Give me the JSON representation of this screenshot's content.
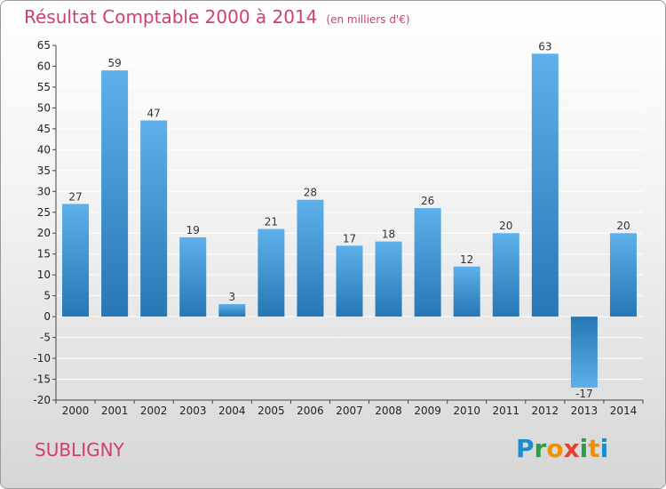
{
  "chart_data": {
    "type": "bar",
    "title": "Résultat Comptable 2000 à 2014",
    "subtitle": "(en milliers d'€)",
    "categories": [
      "2000",
      "2001",
      "2002",
      "2003",
      "2004",
      "2005",
      "2006",
      "2007",
      "2008",
      "2009",
      "2010",
      "2011",
      "2012",
      "2013",
      "2014"
    ],
    "values": [
      27,
      59,
      47,
      19,
      3,
      21,
      28,
      17,
      18,
      26,
      12,
      20,
      63,
      -17,
      20
    ],
    "ylim": [
      -20,
      65
    ],
    "yticks": [
      65,
      60,
      55,
      50,
      45,
      40,
      35,
      30,
      25,
      20,
      15,
      10,
      5,
      0,
      -5,
      -10,
      -15,
      -20
    ],
    "ytick_labels": [
      "65",
      "60",
      "55",
      "50",
      "45",
      "40",
      "35",
      "30",
      "25",
      "20",
      "15",
      "10",
      "5",
      "0",
      "-5",
      "-10",
      "-15",
      "-20"
    ],
    "data_labels": [
      "27",
      "59",
      "47",
      "19",
      "3",
      "21",
      "28",
      "17",
      "18",
      "26",
      "12",
      "20",
      "63",
      "-17",
      "20"
    ],
    "grid": true,
    "colors": {
      "bar_dark": "#2677b4",
      "bar_light": "#5eb0ea",
      "grid": "#ffffff",
      "title": "#d0406a"
    },
    "xlabel": "",
    "ylabel": ""
  },
  "footer": {
    "city": "SUBLIGNY",
    "logo_letters": [
      "P",
      "r",
      "o",
      "x",
      "i",
      "t",
      "i"
    ],
    "logo_colors": [
      "#1d8ccf",
      "#2e9e46",
      "#f29100",
      "#e8412c",
      "#2e9e46",
      "#f29100",
      "#1d8ccf"
    ]
  }
}
